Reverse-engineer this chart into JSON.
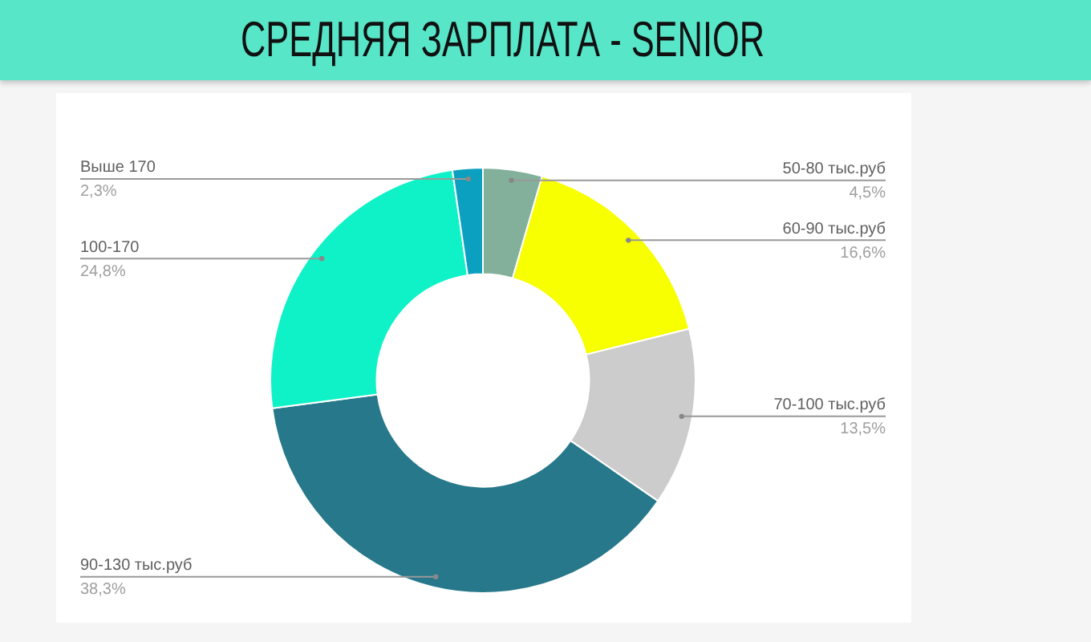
{
  "chart_data": {
    "type": "donut",
    "title": "СРЕДНЯЯ ЗАРПЛАТА - SENIOR",
    "categories": [
      "50-80 тыс.руб",
      "60-90 тыс.руб",
      "70-100 тыс.руб",
      "90-130 тыс.руб",
      "100-170",
      "Выше 170"
    ],
    "values": [
      4.5,
      16.6,
      13.5,
      38.3,
      24.8,
      2.3
    ],
    "value_labels": [
      "4,5%",
      "16,6%",
      "13,5%",
      "38,3%",
      "24,8%",
      "2,3%"
    ],
    "colors": [
      "#82b09b",
      "#f7ff00",
      "#cccccc",
      "#26788a",
      "#0ff2c8",
      "#0ca0c0"
    ]
  }
}
